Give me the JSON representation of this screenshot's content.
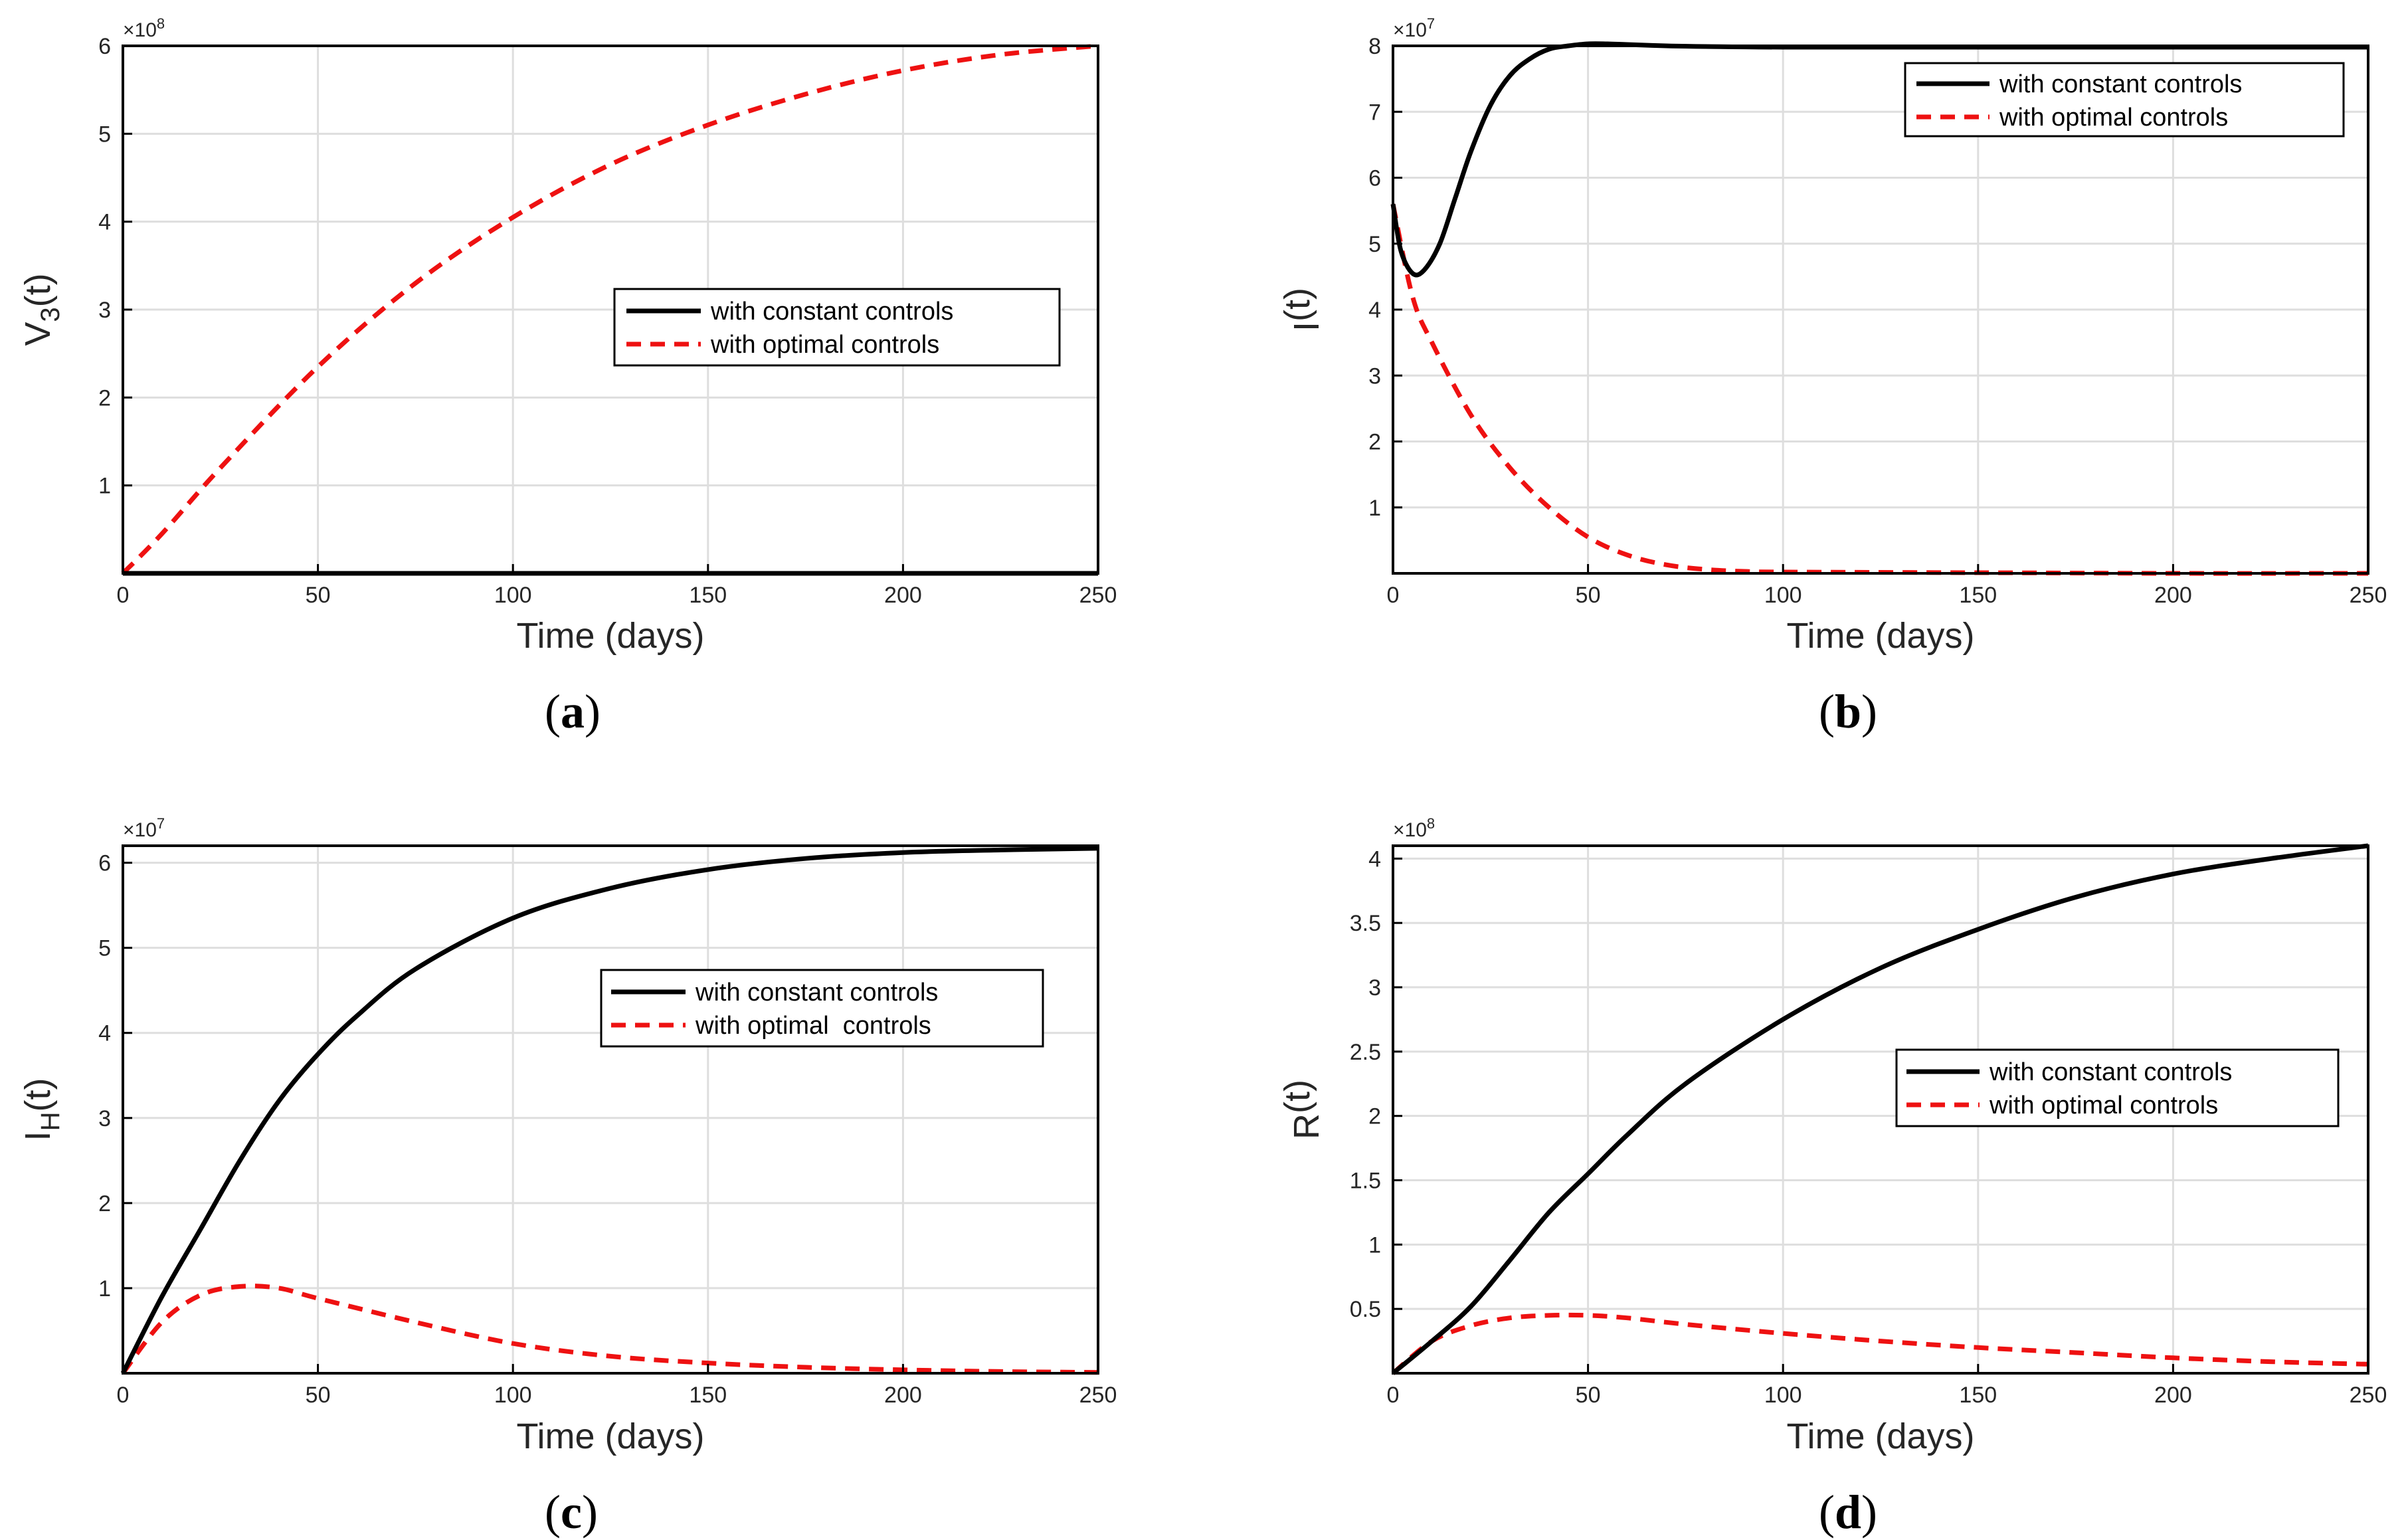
{
  "figure": {
    "legend": {
      "constant": "with constant controls",
      "optimal": "with optimal controls",
      "optimal_c": "with optimal  controls"
    },
    "colors": {
      "constant": "#000000",
      "optimal": "#ee1111"
    }
  },
  "chart_data": [
    {
      "id": "a",
      "type": "line",
      "caption": "a",
      "xlabel": "Time (days)",
      "ylabel": "V",
      "ylabel_sub": "3",
      "ylabel_tail": "(t)",
      "multiplier": "×10",
      "multiplier_exp": "8",
      "xlim": [
        0,
        250
      ],
      "ylim": [
        0,
        6
      ],
      "xticks": [
        "0",
        "50",
        "100",
        "150",
        "200",
        "250"
      ],
      "yticks": [
        "1",
        "2",
        "3",
        "4",
        "5",
        "6"
      ],
      "legend_position": "center-right",
      "series": [
        {
          "name": "with constant controls",
          "key": "constant",
          "x": [
            0,
            250
          ],
          "y": [
            0,
            0
          ]
        },
        {
          "name": "with optimal controls",
          "key": "optimal",
          "x": [
            0,
            10,
            25,
            50,
            75,
            100,
            125,
            150,
            175,
            200,
            225,
            250
          ],
          "y": [
            0,
            0.45,
            1.2,
            2.35,
            3.3,
            4.05,
            4.65,
            5.1,
            5.45,
            5.72,
            5.9,
            6.0
          ]
        }
      ]
    },
    {
      "id": "b",
      "type": "line",
      "caption": "b",
      "xlabel": "Time (days)",
      "ylabel": "I",
      "ylabel_sub": "",
      "ylabel_tail": "(t)",
      "multiplier": "×10",
      "multiplier_exp": "7",
      "xlim": [
        0,
        250
      ],
      "ylim": [
        0,
        8
      ],
      "xticks": [
        "0",
        "50",
        "100",
        "150",
        "200",
        "250"
      ],
      "yticks": [
        "1",
        "2",
        "3",
        "4",
        "5",
        "6",
        "7",
        "8"
      ],
      "legend_position": "top-right",
      "series": [
        {
          "name": "with constant controls",
          "key": "constant",
          "x": [
            0,
            2,
            5,
            8,
            12,
            16,
            20,
            25,
            30,
            35,
            40,
            45,
            50,
            55,
            60,
            70,
            80,
            100,
            150,
            200,
            250
          ],
          "y": [
            5.6,
            4.9,
            4.55,
            4.6,
            5.0,
            5.7,
            6.4,
            7.1,
            7.55,
            7.8,
            7.95,
            8.0,
            8.03,
            8.03,
            8.02,
            8.0,
            7.99,
            7.98,
            7.98,
            7.98,
            7.98
          ]
        },
        {
          "name": "with optimal controls",
          "key": "optimal",
          "x": [
            0,
            5,
            10,
            20,
            30,
            40,
            50,
            60,
            70,
            80,
            90,
            100,
            150,
            200,
            250
          ],
          "y": [
            5.6,
            4.2,
            3.5,
            2.4,
            1.6,
            1.0,
            0.55,
            0.28,
            0.13,
            0.06,
            0.03,
            0.02,
            0.01,
            0.0,
            0.0
          ]
        }
      ]
    },
    {
      "id": "c",
      "type": "line",
      "caption": "c",
      "xlabel": "Time (days)",
      "ylabel": "I",
      "ylabel_sub": "H",
      "ylabel_tail": "(t)",
      "multiplier": "×10",
      "multiplier_exp": "7",
      "xlim": [
        0,
        250
      ],
      "ylim": [
        0,
        6.2
      ],
      "xticks": [
        "0",
        "50",
        "100",
        "150",
        "200",
        "250"
      ],
      "yticks": [
        "1",
        "2",
        "3",
        "4",
        "5",
        "6"
      ],
      "legend_position": "center-right",
      "series": [
        {
          "name": "with constant controls",
          "key": "constant",
          "x": [
            0,
            10,
            20,
            30,
            40,
            50,
            60,
            75,
            100,
            125,
            150,
            175,
            200,
            225,
            250
          ],
          "y": [
            0,
            0.9,
            1.7,
            2.5,
            3.2,
            3.75,
            4.2,
            4.75,
            5.35,
            5.7,
            5.92,
            6.05,
            6.12,
            6.15,
            6.17
          ]
        },
        {
          "name": "with optimal  controls",
          "key": "optimal",
          "x": [
            0,
            10,
            20,
            30,
            40,
            50,
            75,
            100,
            125,
            150,
            175,
            200,
            225,
            250
          ],
          "y": [
            0,
            0.6,
            0.92,
            1.02,
            1.0,
            0.88,
            0.6,
            0.35,
            0.2,
            0.12,
            0.07,
            0.04,
            0.02,
            0.01
          ]
        }
      ]
    },
    {
      "id": "d",
      "type": "line",
      "caption": "d",
      "xlabel": "Time (days)",
      "ylabel": "R",
      "ylabel_sub": "",
      "ylabel_tail": "(t)",
      "multiplier": "×10",
      "multiplier_exp": "8",
      "xlim": [
        0,
        250
      ],
      "ylim": [
        0,
        4.1
      ],
      "xticks": [
        "0",
        "50",
        "100",
        "150",
        "200",
        "250"
      ],
      "yticks": [
        "0.5",
        "1",
        "1.5",
        "2",
        "2.5",
        "3",
        "3.5",
        "4"
      ],
      "legend_position": "center-right",
      "series": [
        {
          "name": "with constant controls",
          "key": "constant",
          "x": [
            0,
            10,
            20,
            30,
            40,
            50,
            60,
            75,
            100,
            125,
            150,
            175,
            200,
            225,
            250
          ],
          "y": [
            0,
            0.25,
            0.52,
            0.88,
            1.25,
            1.55,
            1.85,
            2.25,
            2.75,
            3.15,
            3.45,
            3.7,
            3.88,
            4.0,
            4.1
          ]
        },
        {
          "name": "with optimal controls",
          "key": "optimal",
          "x": [
            0,
            10,
            20,
            30,
            40,
            50,
            60,
            75,
            100,
            125,
            150,
            175,
            200,
            225,
            250
          ],
          "y": [
            0,
            0.25,
            0.37,
            0.43,
            0.45,
            0.45,
            0.43,
            0.38,
            0.31,
            0.25,
            0.2,
            0.16,
            0.12,
            0.09,
            0.07
          ]
        }
      ]
    }
  ]
}
